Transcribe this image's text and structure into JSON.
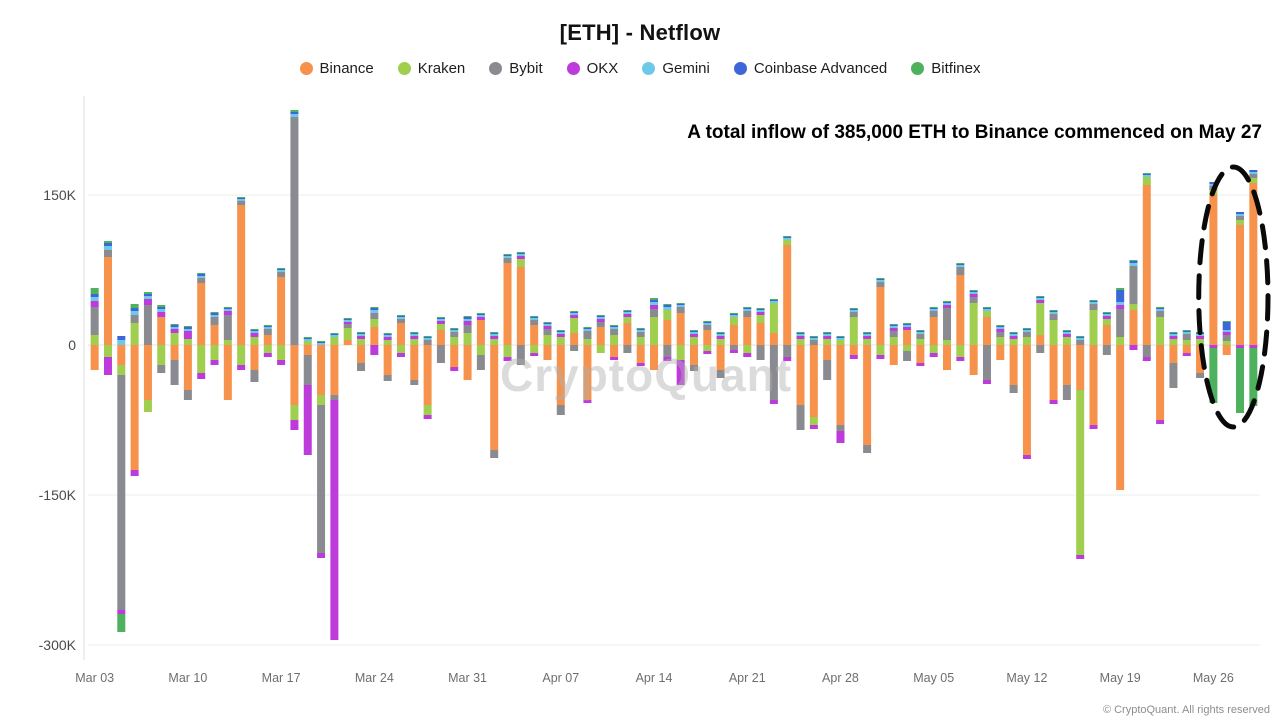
{
  "title": "[ETH] - Netflow",
  "annotation": "A total inflow of 385,000 ETH to Binance commenced on May 27",
  "watermark": "CryptoQuant",
  "footer": "© CryptoQuant. All rights reserved",
  "chart_data": {
    "type": "bar",
    "stacked": true,
    "value_unit": "thousand ETH (K)",
    "grid": true,
    "legend_position": "top",
    "ylim_k": [
      -315,
      245
    ],
    "yticks": [
      {
        "v": 150,
        "label": "150K"
      },
      {
        "v": 0,
        "label": "0"
      },
      {
        "v": -150,
        "label": "-150K"
      },
      {
        "v": -300,
        "label": "-300K"
      }
    ],
    "xticks": [
      {
        "row": 0,
        "label": "Mar 03"
      },
      {
        "row": 7,
        "label": "Mar 10"
      },
      {
        "row": 14,
        "label": "Mar 17"
      },
      {
        "row": 21,
        "label": "Mar 24"
      },
      {
        "row": 28,
        "label": "Mar 31"
      },
      {
        "row": 35,
        "label": "Apr 07"
      },
      {
        "row": 42,
        "label": "Apr 14"
      },
      {
        "row": 49,
        "label": "Apr 21"
      },
      {
        "row": 56,
        "label": "Apr 28"
      },
      {
        "row": 63,
        "label": "May 05"
      },
      {
        "row": 70,
        "label": "May 12"
      },
      {
        "row": 77,
        "label": "May 19"
      },
      {
        "row": 84,
        "label": "May 26"
      }
    ],
    "series": [
      {
        "name": "Binance",
        "color": "#F6924B"
      },
      {
        "name": "Kraken",
        "color": "#A0CE4E"
      },
      {
        "name": "Bybit",
        "color": "#8A8A91"
      },
      {
        "name": "OKX",
        "color": "#BE3BDB"
      },
      {
        "name": "Gemini",
        "color": "#6EC9E8"
      },
      {
        "name": "Coinbase Advanced",
        "color": "#3D66D8"
      },
      {
        "name": "Bitfinex",
        "color": "#4DB15D"
      }
    ],
    "highlight": {
      "row_start": 84,
      "row_end": 88,
      "top_k": 178,
      "bottom_k": -82,
      "style": "dashed-ellipse"
    },
    "rows": [
      {
        "d": "Mar 03",
        "v": [
          -25,
          10,
          28,
          6,
          4,
          3,
          6
        ]
      },
      {
        "d": "Mar 04",
        "v": [
          88,
          -12,
          7,
          -18,
          4,
          3,
          2
        ]
      },
      {
        "d": "Mar 05",
        "v": [
          -20,
          -10,
          -235,
          -4,
          5,
          4,
          -18
        ]
      },
      {
        "d": "Mar 06",
        "v": [
          -125,
          22,
          8,
          -6,
          4,
          3,
          4
        ]
      },
      {
        "d": "Mar 07",
        "v": [
          -55,
          -12,
          40,
          6,
          3,
          2,
          2
        ]
      },
      {
        "d": "Mar 08",
        "v": [
          28,
          -20,
          -8,
          5,
          3,
          2,
          2
        ]
      },
      {
        "d": "Mar 09",
        "v": [
          -15,
          12,
          -25,
          4,
          2,
          2,
          1
        ]
      },
      {
        "d": "Mar 10",
        "v": [
          -45,
          6,
          -10,
          8,
          2,
          2,
          1
        ]
      },
      {
        "d": "Mar 11",
        "v": [
          62,
          -28,
          5,
          -6,
          2,
          2,
          1
        ]
      },
      {
        "d": "Mar 12",
        "v": [
          20,
          -15,
          8,
          -5,
          2,
          2,
          1
        ]
      },
      {
        "d": "Mar 13",
        "v": [
          -55,
          5,
          25,
          4,
          2,
          1,
          1
        ]
      },
      {
        "d": "Mar 14",
        "v": [
          140,
          -20,
          4,
          -5,
          2,
          1,
          1
        ]
      },
      {
        "d": "Mar 15",
        "v": [
          -25,
          8,
          -12,
          4,
          2,
          1,
          1
        ]
      },
      {
        "d": "Mar 16",
        "v": [
          10,
          -8,
          6,
          -4,
          2,
          1,
          1
        ]
      },
      {
        "d": "Mar 17",
        "v": [
          68,
          -15,
          5,
          -5,
          2,
          1,
          1
        ]
      },
      {
        "d": "Mar 18",
        "v": [
          -60,
          -15,
          228,
          -10,
          3,
          2,
          2
        ]
      },
      {
        "d": "Mar 19",
        "v": [
          -10,
          4,
          -30,
          -70,
          2,
          1,
          1
        ]
      },
      {
        "d": "Mar 20",
        "v": [
          -50,
          -10,
          -148,
          -5,
          2,
          1,
          1
        ]
      },
      {
        "d": "Mar 21",
        "v": [
          -50,
          8,
          -5,
          -240,
          2,
          1,
          1
        ]
      },
      {
        "d": "Mar 22",
        "v": [
          5,
          12,
          4,
          2,
          2,
          1,
          1
        ]
      },
      {
        "d": "Mar 23",
        "v": [
          -18,
          6,
          -8,
          3,
          2,
          1,
          1
        ]
      },
      {
        "d": "Mar 24",
        "v": [
          18,
          8,
          6,
          -10,
          3,
          2,
          1
        ]
      },
      {
        "d": "Mar 25",
        "v": [
          -30,
          5,
          -6,
          3,
          2,
          1,
          1
        ]
      },
      {
        "d": "Mar 26",
        "v": [
          22,
          -8,
          4,
          -4,
          2,
          1,
          1
        ]
      },
      {
        "d": "Mar 27",
        "v": [
          -35,
          6,
          -5,
          3,
          2,
          1,
          1
        ]
      },
      {
        "d": "Mar 28",
        "v": [
          -60,
          -10,
          5,
          -4,
          2,
          1,
          1
        ]
      },
      {
        "d": "Mar 29",
        "v": [
          15,
          6,
          -18,
          3,
          2,
          1,
          1
        ]
      },
      {
        "d": "Mar 30",
        "v": [
          -22,
          8,
          5,
          -4,
          2,
          1,
          1
        ]
      },
      {
        "d": "Mar 31",
        "v": [
          -35,
          12,
          8,
          4,
          2,
          2,
          1
        ]
      },
      {
        "d": "Apr 01",
        "v": [
          25,
          -10,
          -15,
          3,
          2,
          1,
          1
        ]
      },
      {
        "d": "Apr 02",
        "v": [
          -105,
          6,
          -8,
          3,
          2,
          1,
          1
        ]
      },
      {
        "d": "Apr 03",
        "v": [
          82,
          -12,
          5,
          -4,
          2,
          1,
          1
        ]
      },
      {
        "d": "Apr 04",
        "v": [
          78,
          8,
          -20,
          3,
          2,
          1,
          1
        ]
      },
      {
        "d": "Apr 05",
        "v": [
          20,
          -8,
          5,
          -3,
          2,
          1,
          1
        ]
      },
      {
        "d": "Apr 06",
        "v": [
          -15,
          10,
          6,
          3,
          2,
          1,
          1
        ]
      },
      {
        "d": "Apr 07",
        "v": [
          -60,
          8,
          -10,
          3,
          2,
          1,
          1
        ]
      },
      {
        "d": "Apr 08",
        "v": [
          12,
          15,
          -6,
          3,
          2,
          1,
          1
        ]
      },
      {
        "d": "Apr 09",
        "v": [
          -55,
          6,
          8,
          -3,
          2,
          1,
          1
        ]
      },
      {
        "d": "Apr 10",
        "v": [
          18,
          -8,
          5,
          3,
          2,
          1,
          1
        ]
      },
      {
        "d": "Apr 11",
        "v": [
          -12,
          10,
          6,
          -3,
          2,
          1,
          1
        ]
      },
      {
        "d": "Apr 12",
        "v": [
          22,
          6,
          -8,
          3,
          2,
          1,
          1
        ]
      },
      {
        "d": "Apr 13",
        "v": [
          -18,
          8,
          5,
          -3,
          2,
          1,
          1
        ]
      },
      {
        "d": "Apr 14",
        "v": [
          -25,
          28,
          8,
          4,
          3,
          2,
          2
        ]
      },
      {
        "d": "Apr 15",
        "v": [
          25,
          10,
          -12,
          -4,
          3,
          2,
          1
        ]
      },
      {
        "d": "Apr 16",
        "v": [
          32,
          -15,
          6,
          -25,
          2,
          1,
          1
        ]
      },
      {
        "d": "Apr 17",
        "v": [
          -20,
          8,
          -6,
          3,
          2,
          1,
          1
        ]
      },
      {
        "d": "Apr 18",
        "v": [
          15,
          -6,
          5,
          -3,
          2,
          1,
          1
        ]
      },
      {
        "d": "Apr 19",
        "v": [
          -25,
          6,
          -8,
          3,
          2,
          1,
          1
        ]
      },
      {
        "d": "Apr 20",
        "v": [
          20,
          8,
          -5,
          -3,
          2,
          1,
          1
        ]
      },
      {
        "d": "Apr 21",
        "v": [
          28,
          -8,
          6,
          -4,
          2,
          1,
          1
        ]
      },
      {
        "d": "Apr 22",
        "v": [
          22,
          8,
          -15,
          3,
          2,
          1,
          1
        ]
      },
      {
        "d": "Apr 23",
        "v": [
          12,
          30,
          -55,
          -4,
          2,
          1,
          1
        ]
      },
      {
        "d": "Apr 24",
        "v": [
          100,
          5,
          -12,
          -4,
          2,
          1,
          1
        ]
      },
      {
        "d": "Apr 25",
        "v": [
          -60,
          6,
          -25,
          3,
          2,
          1,
          1
        ]
      },
      {
        "d": "Apr 26",
        "v": [
          -72,
          -8,
          5,
          -4,
          2,
          1,
          1
        ]
      },
      {
        "d": "Apr 27",
        "v": [
          -15,
          6,
          -20,
          3,
          2,
          1,
          1
        ]
      },
      {
        "d": "Apr 28",
        "v": [
          -80,
          5,
          -6,
          -12,
          2,
          1,
          1
        ]
      },
      {
        "d": "Apr 29",
        "v": [
          -10,
          28,
          5,
          -4,
          2,
          1,
          1
        ]
      },
      {
        "d": "Apr 30",
        "v": [
          -100,
          6,
          -8,
          3,
          2,
          1,
          1
        ]
      },
      {
        "d": "May 01",
        "v": [
          58,
          -10,
          5,
          -4,
          2,
          1,
          1
        ]
      },
      {
        "d": "May 02",
        "v": [
          -20,
          8,
          6,
          3,
          2,
          1,
          1
        ]
      },
      {
        "d": "May 03",
        "v": [
          15,
          -6,
          -10,
          3,
          2,
          1,
          1
        ]
      },
      {
        "d": "May 04",
        "v": [
          -18,
          6,
          5,
          -3,
          2,
          1,
          1
        ]
      },
      {
        "d": "May 05",
        "v": [
          28,
          -8,
          6,
          -4,
          2,
          1,
          1
        ]
      },
      {
        "d": "May 06",
        "v": [
          -25,
          5,
          32,
          3,
          2,
          1,
          1
        ]
      },
      {
        "d": "May 07",
        "v": [
          70,
          -12,
          8,
          -4,
          2,
          1,
          1
        ]
      },
      {
        "d": "May 08",
        "v": [
          -30,
          42,
          6,
          3,
          2,
          1,
          1
        ]
      },
      {
        "d": "May 09",
        "v": [
          28,
          6,
          -35,
          -4,
          2,
          1,
          1
        ]
      },
      {
        "d": "May 10",
        "v": [
          -15,
          8,
          5,
          3,
          2,
          1,
          1
        ]
      },
      {
        "d": "May 11",
        "v": [
          -40,
          6,
          -8,
          3,
          2,
          1,
          1
        ]
      },
      {
        "d": "May 12",
        "v": [
          -110,
          8,
          5,
          -4,
          2,
          1,
          1
        ]
      },
      {
        "d": "May 13",
        "v": [
          10,
          32,
          -8,
          3,
          2,
          1,
          1
        ]
      },
      {
        "d": "May 14",
        "v": [
          -55,
          25,
          6,
          -4,
          2,
          1,
          1
        ]
      },
      {
        "d": "May 15",
        "v": [
          -40,
          8,
          -15,
          3,
          2,
          1,
          1
        ]
      },
      {
        "d": "May 16",
        "v": [
          -45,
          -165,
          5,
          -4,
          2,
          1,
          1
        ]
      },
      {
        "d": "May 17",
        "v": [
          -80,
          35,
          6,
          -4,
          2,
          1,
          1
        ]
      },
      {
        "d": "May 18",
        "v": [
          20,
          6,
          -10,
          3,
          2,
          1,
          1
        ]
      },
      {
        "d": "May 19",
        "v": [
          -145,
          8,
          28,
          4,
          3,
          12,
          2
        ]
      },
      {
        "d": "May 20",
        "v": [
          35,
          6,
          38,
          -5,
          3,
          2,
          1
        ]
      },
      {
        "d": "May 21",
        "v": [
          160,
          8,
          -12,
          -4,
          2,
          1,
          1
        ]
      },
      {
        "d": "May 22",
        "v": [
          -75,
          28,
          6,
          -4,
          2,
          1,
          1
        ]
      },
      {
        "d": "May 23",
        "v": [
          -18,
          6,
          -25,
          3,
          2,
          1,
          1
        ]
      },
      {
        "d": "May 24",
        "v": [
          -8,
          5,
          6,
          -3,
          2,
          1,
          1
        ]
      },
      {
        "d": "May 25",
        "v": [
          -28,
          6,
          -5,
          3,
          2,
          1,
          1
        ]
      },
      {
        "d": "May 26",
        "v": [
          150,
          5,
          4,
          -3,
          2,
          2,
          -55
        ]
      },
      {
        "d": "May 27",
        "v": [
          -10,
          4,
          6,
          3,
          2,
          8,
          1
        ]
      },
      {
        "d": "May 28",
        "v": [
          120,
          5,
          4,
          -3,
          2,
          2,
          -65
        ]
      },
      {
        "d": "May 29",
        "v": [
          162,
          5,
          4,
          -3,
          2,
          2,
          -58
        ]
      }
    ]
  }
}
